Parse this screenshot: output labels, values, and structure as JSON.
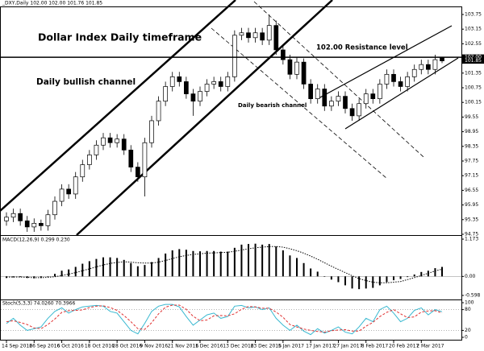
{
  "chart_data": [
    {
      "type": "candlestick",
      "title": "_DXY,Daily  102.00 102.00 101.76 101.85",
      "annotations": [
        "Dollar Index Daily timeframe",
        "Daily bullish channel",
        "Daily bearish channel",
        "102.00 Resistance level"
      ],
      "categories": [
        "14 Sep 2016",
        null,
        null,
        null,
        "26 Sep 2016",
        null,
        null,
        null,
        "6 Oct 2016",
        null,
        null,
        null,
        "18 Oct 2016",
        null,
        null,
        null,
        "28 Oct 2016",
        null,
        null,
        null,
        "9 Nov 2016",
        null,
        null,
        null,
        "21 Nov 2016",
        null,
        null,
        null,
        "1 Dec 2016",
        null,
        null,
        null,
        "13 Dec 2016",
        null,
        null,
        null,
        "23 Dec 2016",
        null,
        null,
        null,
        "5 Jan 2017",
        null,
        null,
        null,
        "17 Jan 2017",
        null,
        null,
        null,
        "27 Jan 2017",
        null,
        null,
        null,
        "8 Feb 2017",
        null,
        null,
        null,
        "20 Feb 2017",
        null,
        null,
        null,
        "2 Mar 2017",
        null,
        null,
        null
      ],
      "open": [
        95.3,
        95.45,
        95.6,
        95.3,
        95.05,
        95.2,
        95.1,
        95.55,
        96.1,
        96.6,
        96.4,
        97.1,
        97.6,
        98.0,
        98.4,
        98.7,
        98.5,
        98.65,
        98.2,
        97.5,
        97.1,
        98.5,
        99.4,
        100.2,
        100.8,
        101.2,
        101.0,
        100.5,
        100.2,
        100.6,
        100.9,
        101.0,
        100.8,
        101.2,
        102.9,
        103.0,
        102.8,
        103.0,
        102.7,
        103.3,
        102.3,
        101.9,
        101.3,
        101.8,
        100.9,
        100.3,
        100.7,
        100.0,
        100.2,
        100.4,
        99.9,
        99.6,
        100.1,
        100.5,
        100.3,
        100.9,
        101.3,
        101.0,
        100.8,
        101.2,
        101.5,
        101.7,
        101.5,
        102.0
      ],
      "high": [
        95.65,
        95.8,
        95.8,
        95.5,
        95.4,
        95.35,
        95.75,
        96.3,
        96.8,
        96.8,
        97.3,
        97.8,
        98.2,
        98.6,
        98.9,
        98.9,
        98.85,
        98.85,
        98.4,
        97.7,
        98.7,
        99.6,
        100.4,
        101.0,
        101.4,
        101.4,
        101.2,
        100.7,
        100.8,
        101.1,
        101.2,
        101.2,
        101.4,
        103.1,
        103.2,
        103.2,
        103.2,
        103.2,
        103.75,
        103.5,
        102.5,
        102.1,
        102.0,
        101.95,
        101.1,
        100.9,
        100.9,
        100.4,
        100.6,
        100.6,
        100.1,
        100.3,
        100.7,
        100.7,
        101.1,
        101.5,
        101.5,
        101.2,
        101.4,
        101.7,
        101.9,
        101.9,
        102.1,
        102.0
      ],
      "low": [
        95.1,
        95.25,
        95.1,
        94.85,
        94.85,
        94.9,
        94.9,
        95.35,
        95.9,
        96.2,
        96.2,
        96.9,
        97.4,
        97.8,
        98.2,
        98.3,
        98.3,
        98.0,
        97.3,
        96.9,
        96.3,
        98.3,
        99.2,
        100.0,
        100.6,
        100.8,
        100.3,
        99.6,
        100.0,
        100.4,
        100.7,
        100.6,
        100.6,
        101.0,
        102.7,
        102.6,
        102.6,
        102.5,
        102.5,
        102.1,
        101.7,
        101.1,
        101.1,
        100.7,
        100.1,
        100.1,
        99.8,
        99.8,
        100.0,
        99.7,
        99.4,
        99.4,
        99.9,
        100.1,
        100.1,
        100.7,
        100.8,
        100.6,
        100.6,
        101.0,
        101.3,
        101.3,
        101.3,
        101.76
      ],
      "close": [
        95.45,
        95.6,
        95.3,
        95.05,
        95.2,
        95.1,
        95.55,
        96.1,
        96.6,
        96.4,
        97.1,
        97.6,
        98.0,
        98.4,
        98.7,
        98.5,
        98.65,
        98.2,
        97.5,
        97.1,
        98.5,
        99.4,
        100.2,
        100.8,
        101.2,
        101.0,
        100.5,
        100.2,
        100.6,
        100.9,
        101.0,
        100.8,
        101.2,
        102.9,
        103.0,
        102.8,
        103.0,
        102.7,
        103.3,
        102.3,
        101.9,
        101.3,
        101.8,
        100.9,
        100.3,
        100.7,
        100.0,
        100.2,
        100.4,
        99.9,
        99.6,
        100.1,
        100.5,
        100.3,
        100.9,
        101.3,
        101.0,
        100.8,
        101.2,
        101.5,
        101.7,
        101.5,
        101.9,
        101.85
      ],
      "ylim": [
        94.75,
        103.75
      ],
      "yticks": [
        94.75,
        95.35,
        95.95,
        96.55,
        97.15,
        97.75,
        98.35,
        98.95,
        99.55,
        100.15,
        100.75,
        101.35,
        102.55,
        103.15,
        103.75
      ],
      "price_markers": [
        {
          "value": 102,
          "label": "102.00"
        },
        {
          "value": 101.85,
          "label": "101.85"
        }
      ],
      "up_color": "#ffffff",
      "down_color": "#000000"
    },
    {
      "type": "bar",
      "title": "MACD(12,26,9) 0.299 0.230",
      "ylim": [
        -0.7,
        1.25
      ],
      "yticks": [
        -0.598,
        {
          "value": 0,
          "label": "0.00"
        },
        1.173
      ],
      "series": [
        {
          "color": "#000000",
          "values": [
            -0.05,
            -0.03,
            -0.02,
            -0.05,
            -0.06,
            -0.05,
            0.0,
            0.08,
            0.18,
            0.22,
            0.3,
            0.4,
            0.48,
            0.55,
            0.6,
            0.6,
            0.58,
            0.52,
            0.42,
            0.32,
            0.36,
            0.45,
            0.58,
            0.72,
            0.82,
            0.86,
            0.84,
            0.8,
            0.79,
            0.8,
            0.8,
            0.78,
            0.78,
            0.9,
            1.0,
            1.02,
            1.03,
            1.0,
            1.02,
            0.94,
            0.82,
            0.66,
            0.58,
            0.42,
            0.25,
            0.15,
            0.0,
            -0.1,
            -0.18,
            -0.28,
            -0.38,
            -0.4,
            -0.38,
            -0.36,
            -0.28,
            -0.18,
            -0.12,
            -0.08,
            -0.02,
            0.06,
            0.14,
            0.18,
            0.26,
            0.299
          ]
        },
        {
          "color": "#000000",
          "style": "dotted",
          "values": [
            -0.02,
            -0.02,
            -0.02,
            -0.03,
            -0.04,
            -0.04,
            -0.03,
            -0.01,
            0.03,
            0.07,
            0.12,
            0.18,
            0.24,
            0.3,
            0.36,
            0.41,
            0.44,
            0.46,
            0.45,
            0.43,
            0.42,
            0.42,
            0.45,
            0.5,
            0.56,
            0.62,
            0.66,
            0.69,
            0.71,
            0.73,
            0.74,
            0.75,
            0.76,
            0.79,
            0.83,
            0.87,
            0.9,
            0.92,
            0.94,
            0.94,
            0.92,
            0.87,
            0.81,
            0.73,
            0.64,
            0.54,
            0.43,
            0.32,
            0.22,
            0.12,
            0.02,
            -0.07,
            -0.13,
            -0.18,
            -0.2,
            -0.2,
            -0.18,
            -0.16,
            -0.1,
            -0.04,
            0.03,
            0.1,
            0.17,
            0.23
          ]
        }
      ]
    },
    {
      "type": "line",
      "title": "Stoch(5,3,3) 74.0260 70.3966",
      "ylim": [
        0,
        100
      ],
      "yticks": [
        0,
        20,
        80,
        100
      ],
      "grid": [
        20,
        80
      ],
      "series": [
        {
          "color": "#38b8d0",
          "style": "solid",
          "values": [
            40,
            55,
            35,
            20,
            25,
            30,
            55,
            75,
            85,
            70,
            80,
            88,
            90,
            92,
            90,
            75,
            70,
            45,
            20,
            10,
            40,
            75,
            90,
            95,
            95,
            88,
            60,
            35,
            50,
            65,
            70,
            55,
            60,
            90,
            92,
            85,
            88,
            80,
            85,
            55,
            35,
            20,
            35,
            18,
            8,
            25,
            12,
            20,
            30,
            15,
            10,
            30,
            55,
            45,
            80,
            90,
            70,
            45,
            55,
            78,
            85,
            65,
            80,
            74.026
          ]
        },
        {
          "color": "#e03030",
          "style": "dashed",
          "values": [
            45,
            48,
            43,
            37,
            27,
            25,
            37,
            53,
            72,
            77,
            78,
            79,
            86,
            90,
            91,
            86,
            78,
            63,
            45,
            25,
            23,
            42,
            68,
            87,
            93,
            93,
            81,
            61,
            48,
            50,
            62,
            63,
            62,
            68,
            81,
            89,
            88,
            84,
            84,
            73,
            58,
            37,
            30,
            24,
            20,
            17,
            15,
            19,
            21,
            22,
            18,
            18,
            32,
            43,
            60,
            72,
            80,
            68,
            57,
            59,
            73,
            76,
            77,
            70.3966
          ]
        }
      ]
    }
  ]
}
